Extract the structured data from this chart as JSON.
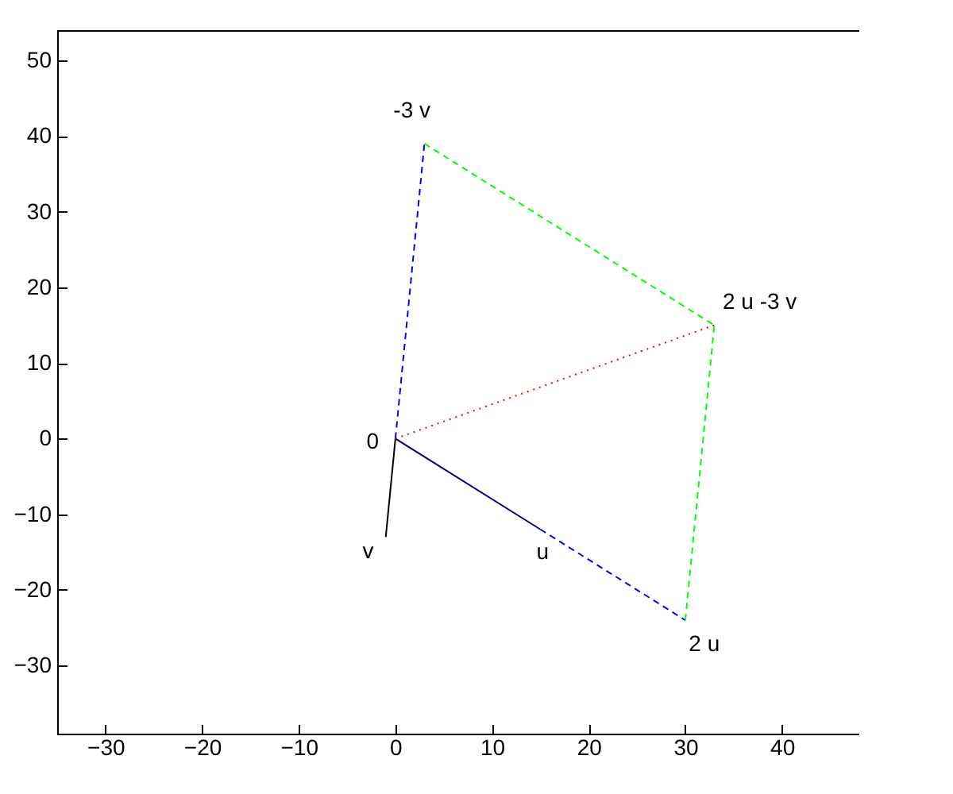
{
  "chart_data": {
    "type": "line",
    "xlim": [
      -35,
      48
    ],
    "ylim": [
      -39,
      54
    ],
    "xticks": [
      -30,
      -20,
      -10,
      0,
      10,
      20,
      30,
      40
    ],
    "yticks": [
      -30,
      -20,
      -10,
      0,
      10,
      20,
      30,
      40,
      50
    ],
    "grid": false,
    "legend": false,
    "marker": "none",
    "series": [
      {
        "color": "#000080",
        "line_style": "solid",
        "x": [
          0,
          15
        ],
        "values": [
          0,
          -12
        ]
      },
      {
        "color": "#000000",
        "line_style": "solid",
        "x": [
          0,
          -1
        ],
        "values": [
          0,
          -13
        ]
      },
      {
        "color": "#0000ff",
        "line_style": "dashed",
        "x": [
          15,
          30
        ],
        "values": [
          -12,
          -24
        ]
      },
      {
        "color": "#0000ff",
        "line_style": "dashed",
        "x": [
          0,
          3
        ],
        "values": [
          0,
          39
        ]
      },
      {
        "color": "#00ff00",
        "line_style": "dashed",
        "x": [
          3,
          33
        ],
        "values": [
          39,
          15
        ]
      },
      {
        "color": "#00ff00",
        "line_style": "dashed",
        "x": [
          30,
          33
        ],
        "values": [
          -24,
          15
        ]
      },
      {
        "color": "#ff0000",
        "line_style": "dotted",
        "x": [
          0,
          33
        ],
        "values": [
          0,
          15
        ]
      }
    ],
    "annotations": [
      {
        "text": "0",
        "x": 0,
        "y": 0
      },
      {
        "text": "u",
        "x": 15,
        "y": -12
      },
      {
        "text": "v",
        "x": -1,
        "y": -13
      },
      {
        "text": "2 u",
        "x": 30,
        "y": -24
      },
      {
        "text": "-3 v",
        "x": 3,
        "y": 39
      },
      {
        "text": "2 u -3 v",
        "x": 33,
        "y": 15
      }
    ]
  }
}
